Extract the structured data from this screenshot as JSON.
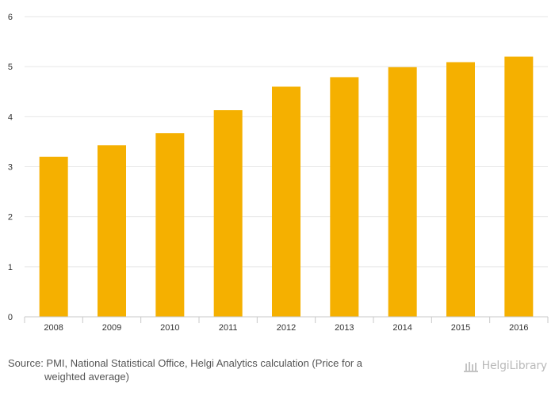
{
  "chart_data": {
    "type": "bar",
    "categories": [
      "2008",
      "2009",
      "2010",
      "2011",
      "2012",
      "2013",
      "2014",
      "2015",
      "2016"
    ],
    "values": [
      3.2,
      3.43,
      3.67,
      4.13,
      4.6,
      4.79,
      4.99,
      5.09,
      5.2
    ],
    "ylim": [
      0,
      6
    ],
    "yticks": [
      "0",
      "1",
      "2",
      "3",
      "4",
      "5",
      "6"
    ],
    "grid": true,
    "bar_color": "#f5b000",
    "gridline_color": "#e6e6e6"
  },
  "footer": {
    "source_line1": "Source: PMI, National Statistical Office, Helgi Analytics calculation (Price for a",
    "source_line2": "weighted average)",
    "logo_text": "HelgiLibrary"
  }
}
